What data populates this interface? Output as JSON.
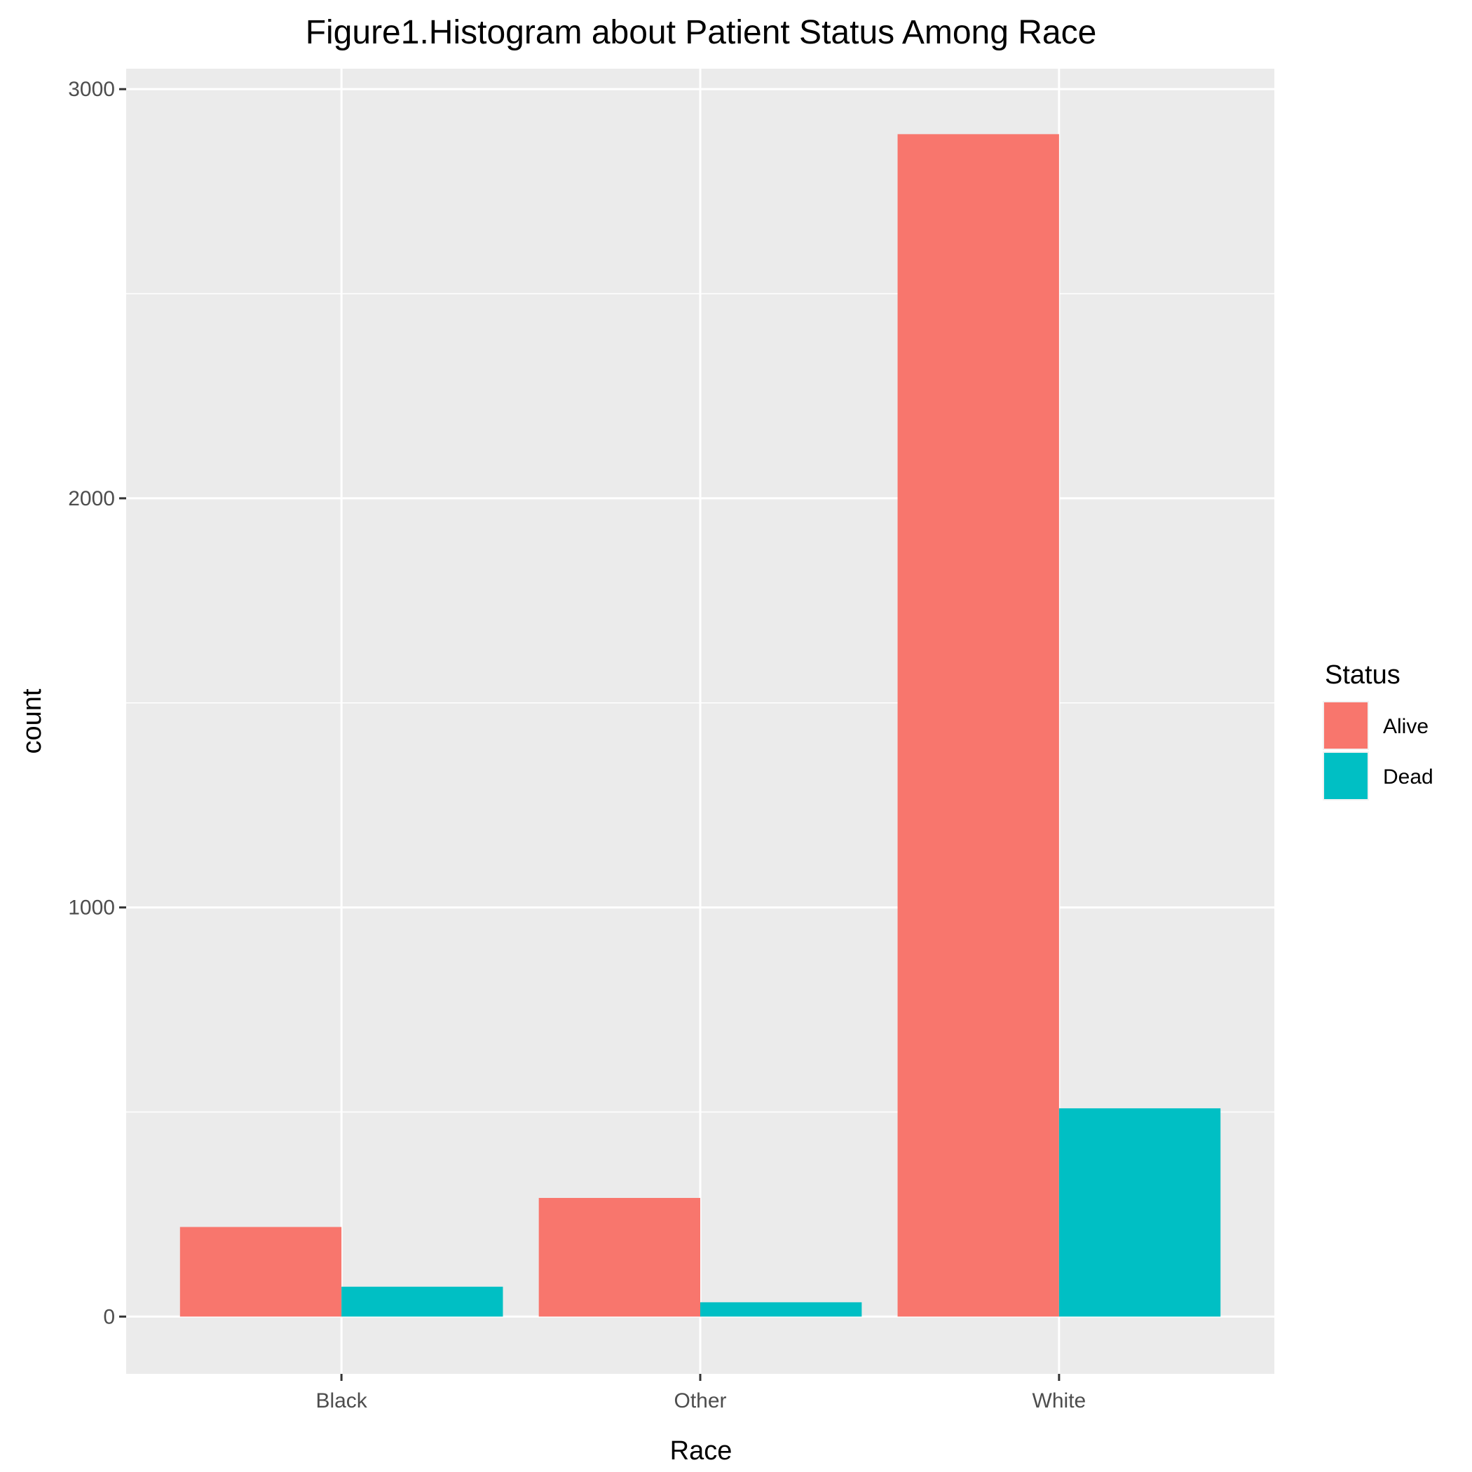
{
  "chart_data": {
    "type": "bar",
    "title": "Figure1.Histogram about Patient Status Among Race",
    "xlabel": "Race",
    "ylabel": "count",
    "categories": [
      "Black",
      "Other",
      "White"
    ],
    "series": [
      {
        "name": "Alive",
        "color": "#F8766D",
        "values": [
          219,
          290,
          2890
        ]
      },
      {
        "name": "Dead",
        "color": "#00BFC4",
        "values": [
          73,
          35,
          509
        ]
      }
    ],
    "ylim": [
      -140,
      3050
    ],
    "yticks": [
      0,
      1000,
      2000,
      3000
    ],
    "grid": true,
    "legend": {
      "title": "Status",
      "position": "right"
    }
  }
}
